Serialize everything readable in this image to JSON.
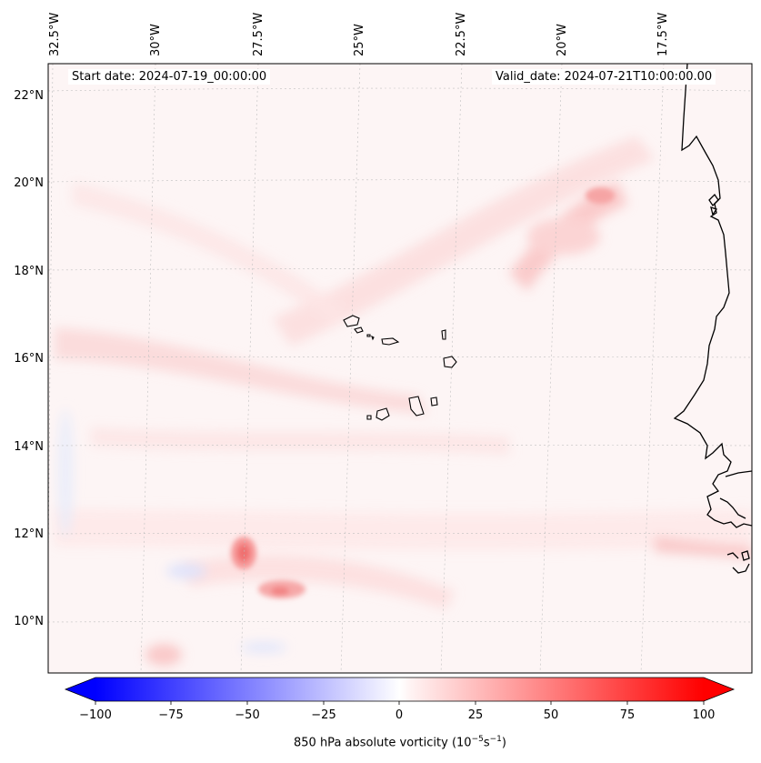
{
  "map": {
    "start_date": "Start date: 2024-07-19_00:00:00",
    "valid_date": "Valid_date: 2024-07-21T10:00:00.00",
    "lon_labels": [
      "32.5°W",
      "30°W",
      "27.5°W",
      "25°W",
      "22.5°W",
      "20°W",
      "17.5°W"
    ],
    "lat_labels": [
      "22°N",
      "20°N",
      "18°N",
      "16°N",
      "14°N",
      "12°N",
      "10°N"
    ],
    "extent": {
      "lon_min": -33.5,
      "lon_max": -15.7,
      "lat_min": 8.8,
      "lat_max": 22.8
    },
    "gridlines": true,
    "background_color": "#fdf3f3",
    "features": [
      "Cape Verde islands",
      "West African coastline"
    ]
  },
  "colorbar": {
    "ticks": [
      "−100",
      "−75",
      "−50",
      "−25",
      "0",
      "25",
      "50",
      "75",
      "100"
    ],
    "min": -100,
    "max": 100,
    "label_prefix": "850 hPa absolute vorticity (10",
    "label_exp1": "−5",
    "label_mid": "s",
    "label_exp2": "−1",
    "label_suffix": ")",
    "colors": {
      "negative": "#0000ff",
      "zero": "#ffffff",
      "positive": "#ff0000"
    },
    "extend": "both"
  }
}
